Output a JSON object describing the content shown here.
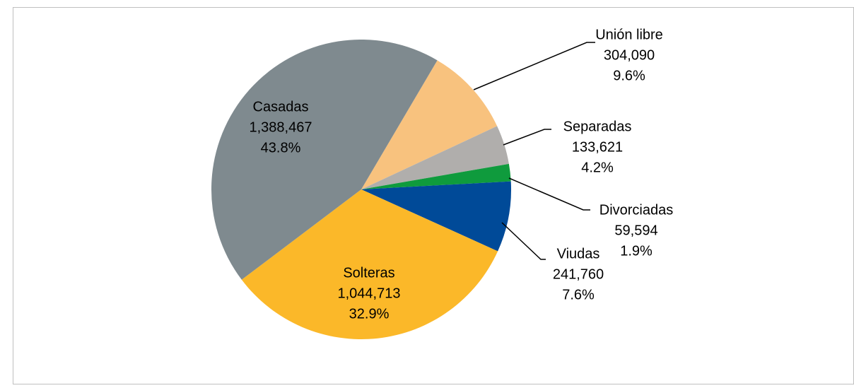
{
  "chart_data": {
    "type": "pie",
    "categories": [
      "Unión libre",
      "Separadas",
      "Divorciadas",
      "Viudas",
      "Solteras",
      "Casadas"
    ],
    "values": [
      304090,
      133621,
      59594,
      241760,
      1044713,
      1388467
    ],
    "value_labels": [
      "304,090",
      "133,621",
      "59,594",
      "241,760",
      "1,044,713",
      "1,388,467"
    ],
    "percentages": [
      9.6,
      4.2,
      1.9,
      7.6,
      32.9,
      43.8
    ],
    "percentage_labels": [
      "9.6%",
      "4.2%",
      "1.9%",
      "7.6%",
      "32.9%",
      "43.8%"
    ],
    "colors": [
      "#f8c27e",
      "#b0aeac",
      "#0f9b3d",
      "#004a98",
      "#fbb829",
      "#7f8a8f"
    ]
  }
}
